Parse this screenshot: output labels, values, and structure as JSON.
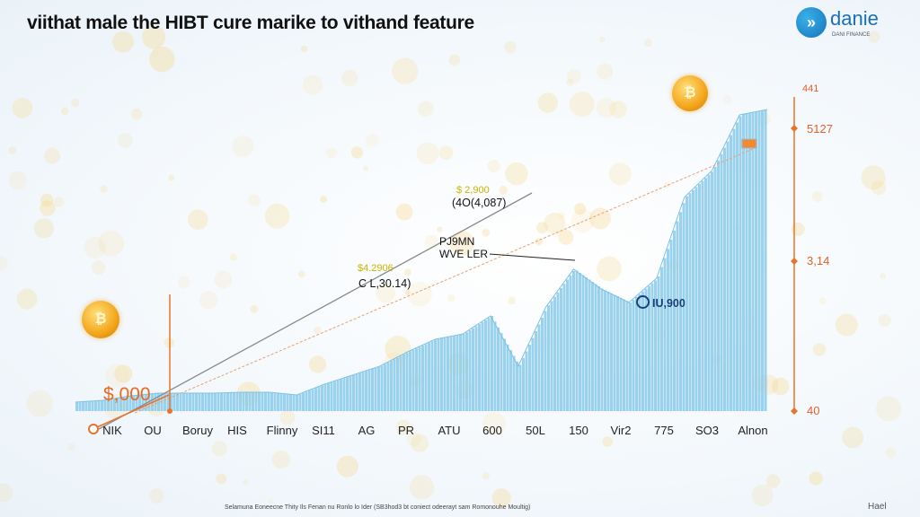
{
  "title": "viithat male the HIBT cure marike to vithand feature",
  "logo": {
    "name": "danie",
    "sub": "DANI FINANCE"
  },
  "footer": "Selamuna Eoneecne Thity Ils Fenan nu Ronlo lo Ider (SB3hod3 bt coniect odeerayt sam Romonouhe Moultig)",
  "brand": "Hael",
  "chart_data": {
    "type": "area",
    "title": "viithat male the HIBT cure marike to vithand feature",
    "x_tick_labels": [
      "NIK",
      "OU",
      "Boruy",
      "HIS",
      "Flinny",
      "SI11",
      "AG",
      "PR",
      "ATU",
      "600",
      "50L",
      "150",
      "Vir2",
      "775",
      "SO3",
      "Alnon"
    ],
    "y_tick_labels_right": [
      "441",
      "5127",
      "3,14",
      "40"
    ],
    "series": [
      {
        "values": [
          201,
          234,
          315,
          363,
          363,
          363,
          379,
          379,
          331,
          525,
          686,
          848,
          1106,
          1332,
          1429,
          1752,
          848,
          1913,
          2592,
          2236,
          1994,
          2430,
          3884,
          4368,
          5370,
          5466
        ]
      }
    ],
    "ylim": [
      40,
      5600
    ],
    "grid": false,
    "annotations": [
      {
        "value": "$ 2,900",
        "text": "(4O(4,087)"
      },
      {
        "value": "$4.2906",
        "text": "C L,30.14)"
      },
      {
        "text": "PJ9MN WVE LER"
      },
      {
        "text": "$,000"
      },
      {
        "text": "IU,900"
      }
    ],
    "colors": {
      "area": "#8fcdec",
      "axis": "#e8742c",
      "trend": "#8a8a8a",
      "accent": "#f0a020"
    }
  }
}
